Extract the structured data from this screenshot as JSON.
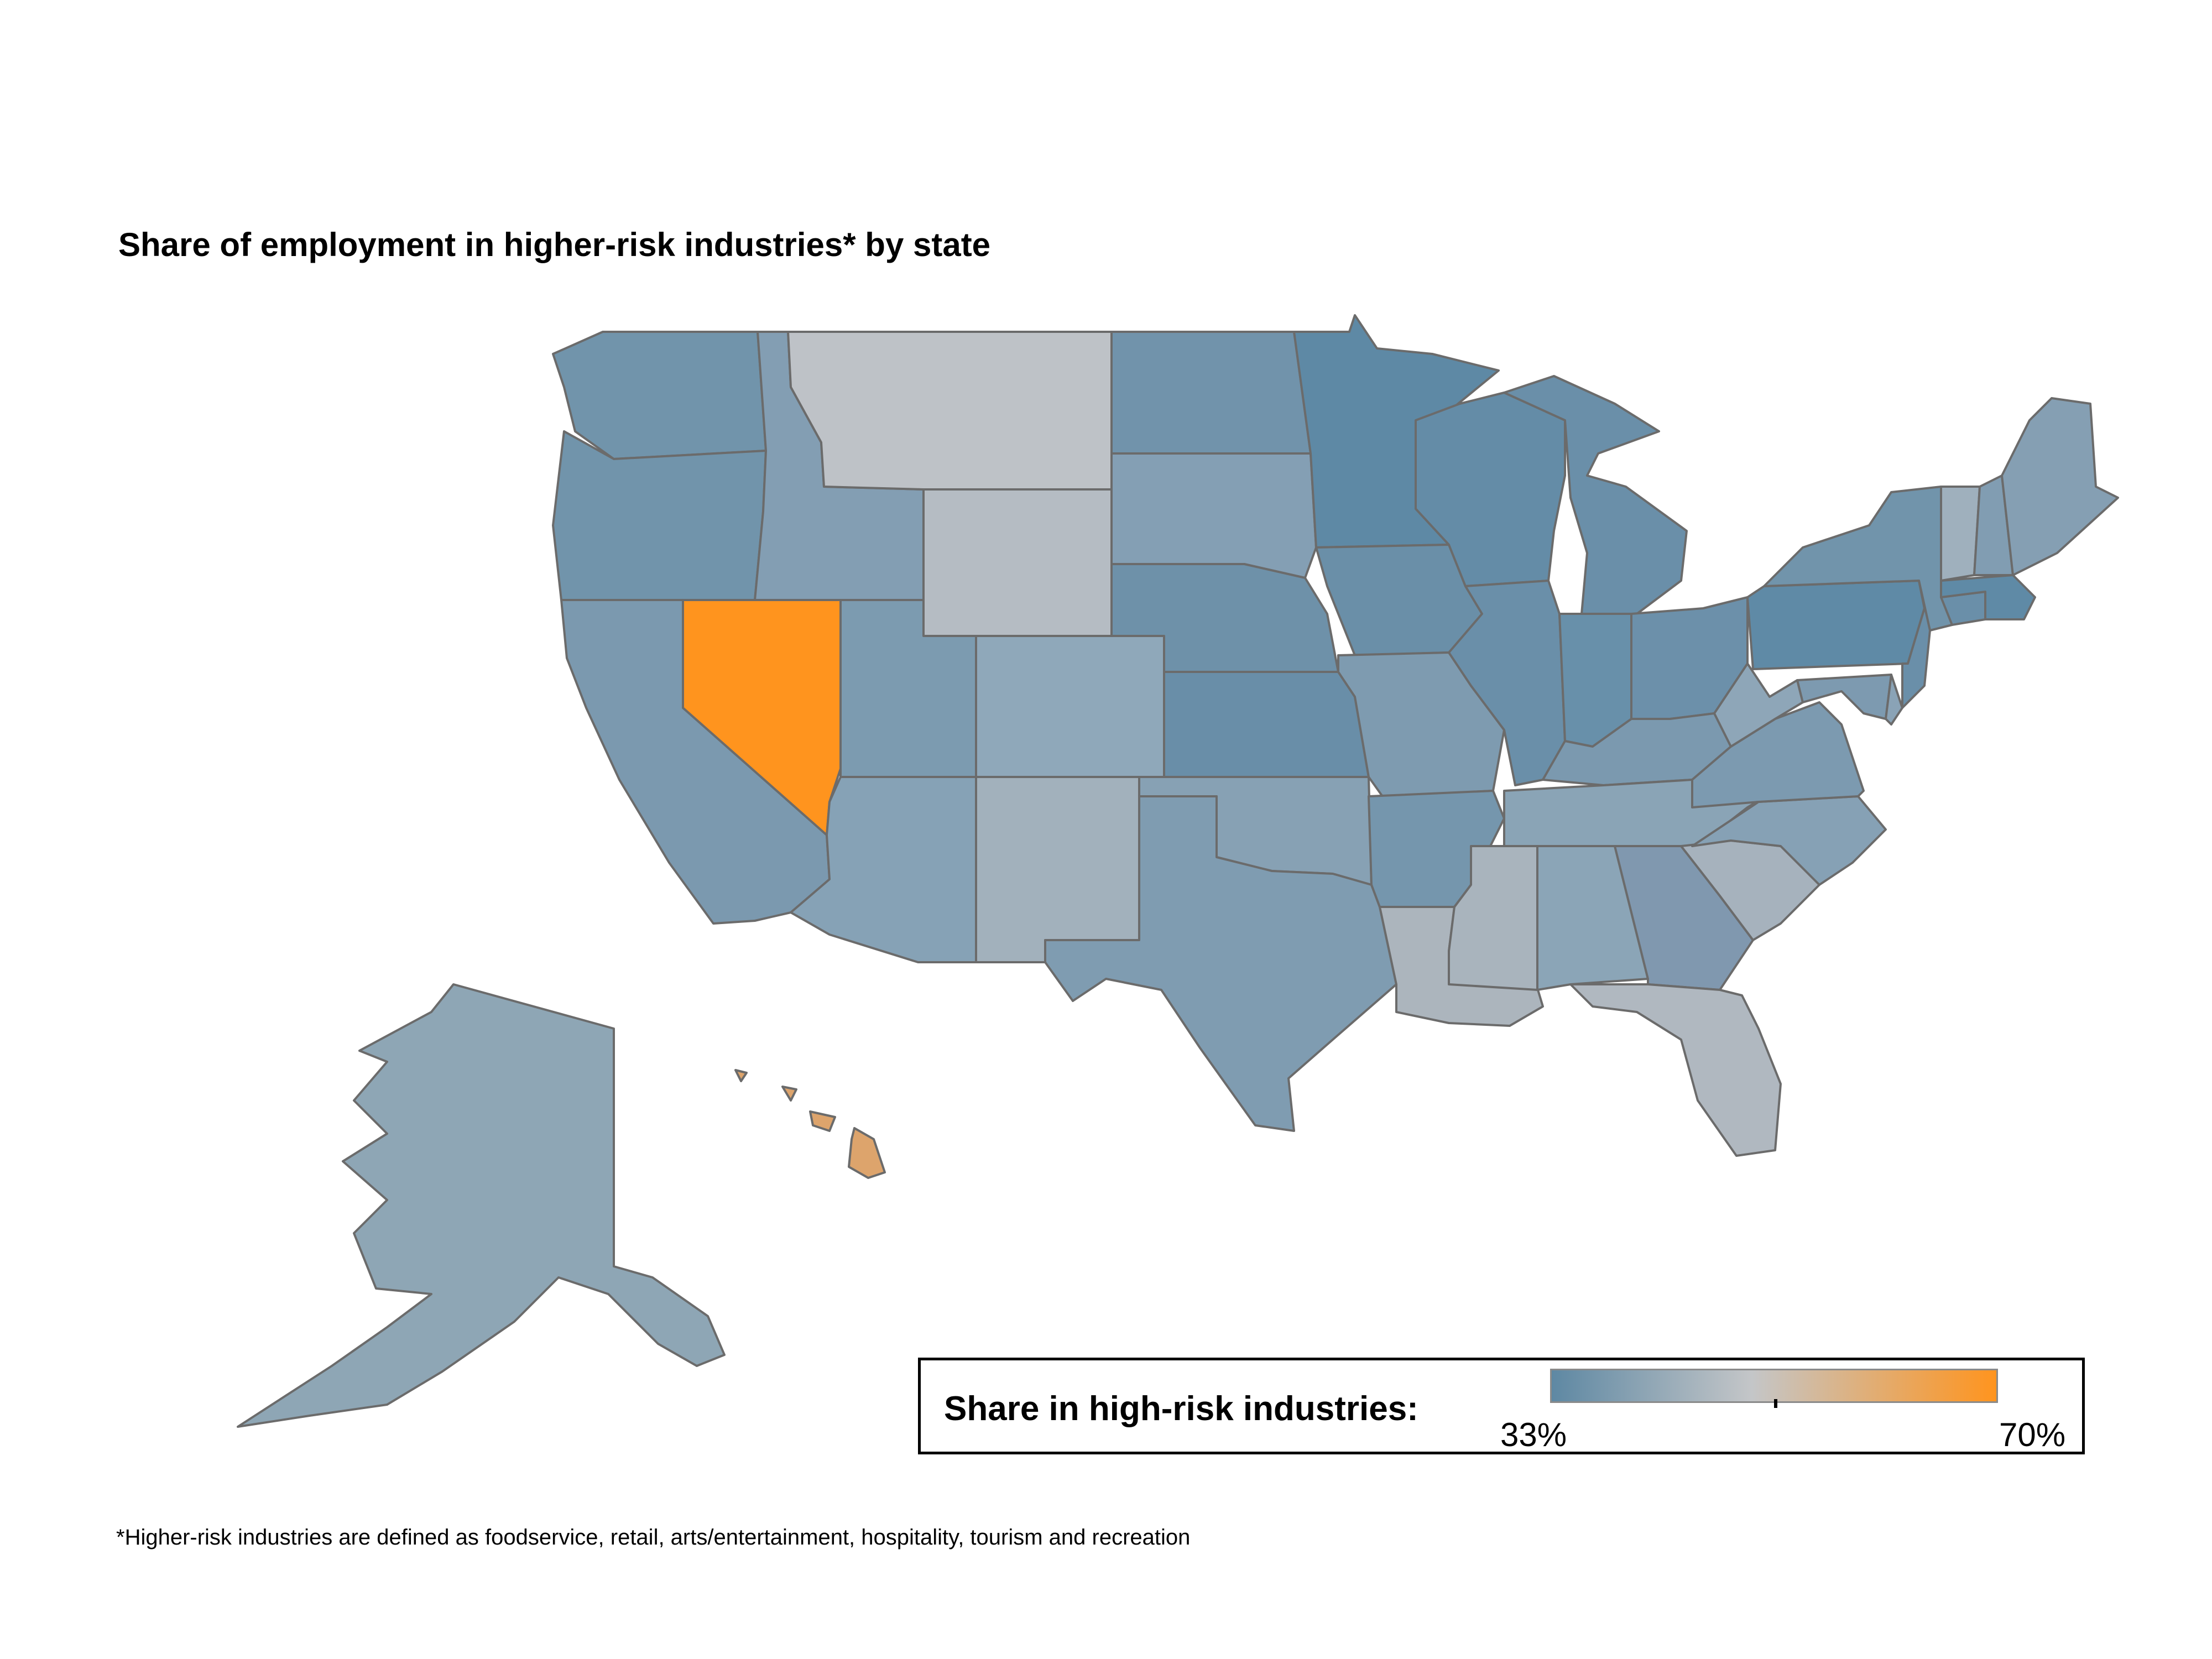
{
  "title": "Share of employment in higher-risk industries* by state",
  "legend": {
    "label": "Share in high-risk industries:",
    "min_label": "33%",
    "max_label": "70%",
    "min_value": 33,
    "max_value": 70,
    "colors": {
      "low": "#5e88a3",
      "mid": "#c4c6c8",
      "high": "#ff941e"
    }
  },
  "footnote": "*Higher-risk industries are defined as foodservice, retail, arts/entertainment, hospitality, tourism and recreation",
  "map_data": {
    "type": "choropleth",
    "regions": [
      {
        "state": "WA",
        "color": "#7194ab"
      },
      {
        "state": "OR",
        "color": "#7194ab"
      },
      {
        "state": "CA",
        "color": "#7b99af"
      },
      {
        "state": "NV",
        "color": "#ff941e"
      },
      {
        "state": "ID",
        "color": "#839eb3"
      },
      {
        "state": "MT",
        "color": "#bec2c7"
      },
      {
        "state": "WY",
        "color": "#b5bcc3"
      },
      {
        "state": "UT",
        "color": "#7c9bb0"
      },
      {
        "state": "AZ",
        "color": "#86a2b6"
      },
      {
        "state": "CO",
        "color": "#8fa8ba"
      },
      {
        "state": "NM",
        "color": "#a2b1bc"
      },
      {
        "state": "ND",
        "color": "#7193ab"
      },
      {
        "state": "SD",
        "color": "#849fb4"
      },
      {
        "state": "NE",
        "color": "#6e91a9"
      },
      {
        "state": "KS",
        "color": "#698ea8"
      },
      {
        "state": "OK",
        "color": "#87a1b4"
      },
      {
        "state": "TX",
        "color": "#7f9cb1"
      },
      {
        "state": "MN",
        "color": "#5e89a5"
      },
      {
        "state": "IA",
        "color": "#6a8fa8"
      },
      {
        "state": "MO",
        "color": "#7e9bb0"
      },
      {
        "state": "AR",
        "color": "#7596ad"
      },
      {
        "state": "LA",
        "color": "#acb5bd"
      },
      {
        "state": "WI",
        "color": "#648ca7"
      },
      {
        "state": "IL",
        "color": "#6a8fa9"
      },
      {
        "state": "MI",
        "color": "#6a8fa9"
      },
      {
        "state": "IN",
        "color": "#6890aa"
      },
      {
        "state": "OH",
        "color": "#6c90aa"
      },
      {
        "state": "KY",
        "color": "#7b99af"
      },
      {
        "state": "TN",
        "color": "#8aa4b6"
      },
      {
        "state": "MS",
        "color": "#a9b4bd"
      },
      {
        "state": "AL",
        "color": "#8ba5b7"
      },
      {
        "state": "GA",
        "color": "#8098af"
      },
      {
        "state": "FL",
        "color": "#b0b8c0"
      },
      {
        "state": "SC",
        "color": "#a6b2bd"
      },
      {
        "state": "NC",
        "color": "#86a1b5"
      },
      {
        "state": "VA",
        "color": "#7c9ab0"
      },
      {
        "state": "WV",
        "color": "#8ea6b8"
      },
      {
        "state": "PA",
        "color": "#5f8aa6"
      },
      {
        "state": "NY",
        "color": "#7194ab"
      },
      {
        "state": "NJ",
        "color": "#6a8fa9"
      },
      {
        "state": "VT",
        "color": "#9fb0bd"
      },
      {
        "state": "NH",
        "color": "#819db2"
      },
      {
        "state": "ME",
        "color": "#859fb3"
      },
      {
        "state": "MA",
        "color": "#5f8aa6"
      },
      {
        "state": "CT",
        "color": "#6a8fa9"
      },
      {
        "state": "MD",
        "color": "#7d9ab0"
      },
      {
        "state": "DE",
        "color": "#8aa3b6"
      },
      {
        "state": "AK",
        "color": "#8ea6b5"
      },
      {
        "state": "HI",
        "color": "#dda46c"
      }
    ]
  }
}
